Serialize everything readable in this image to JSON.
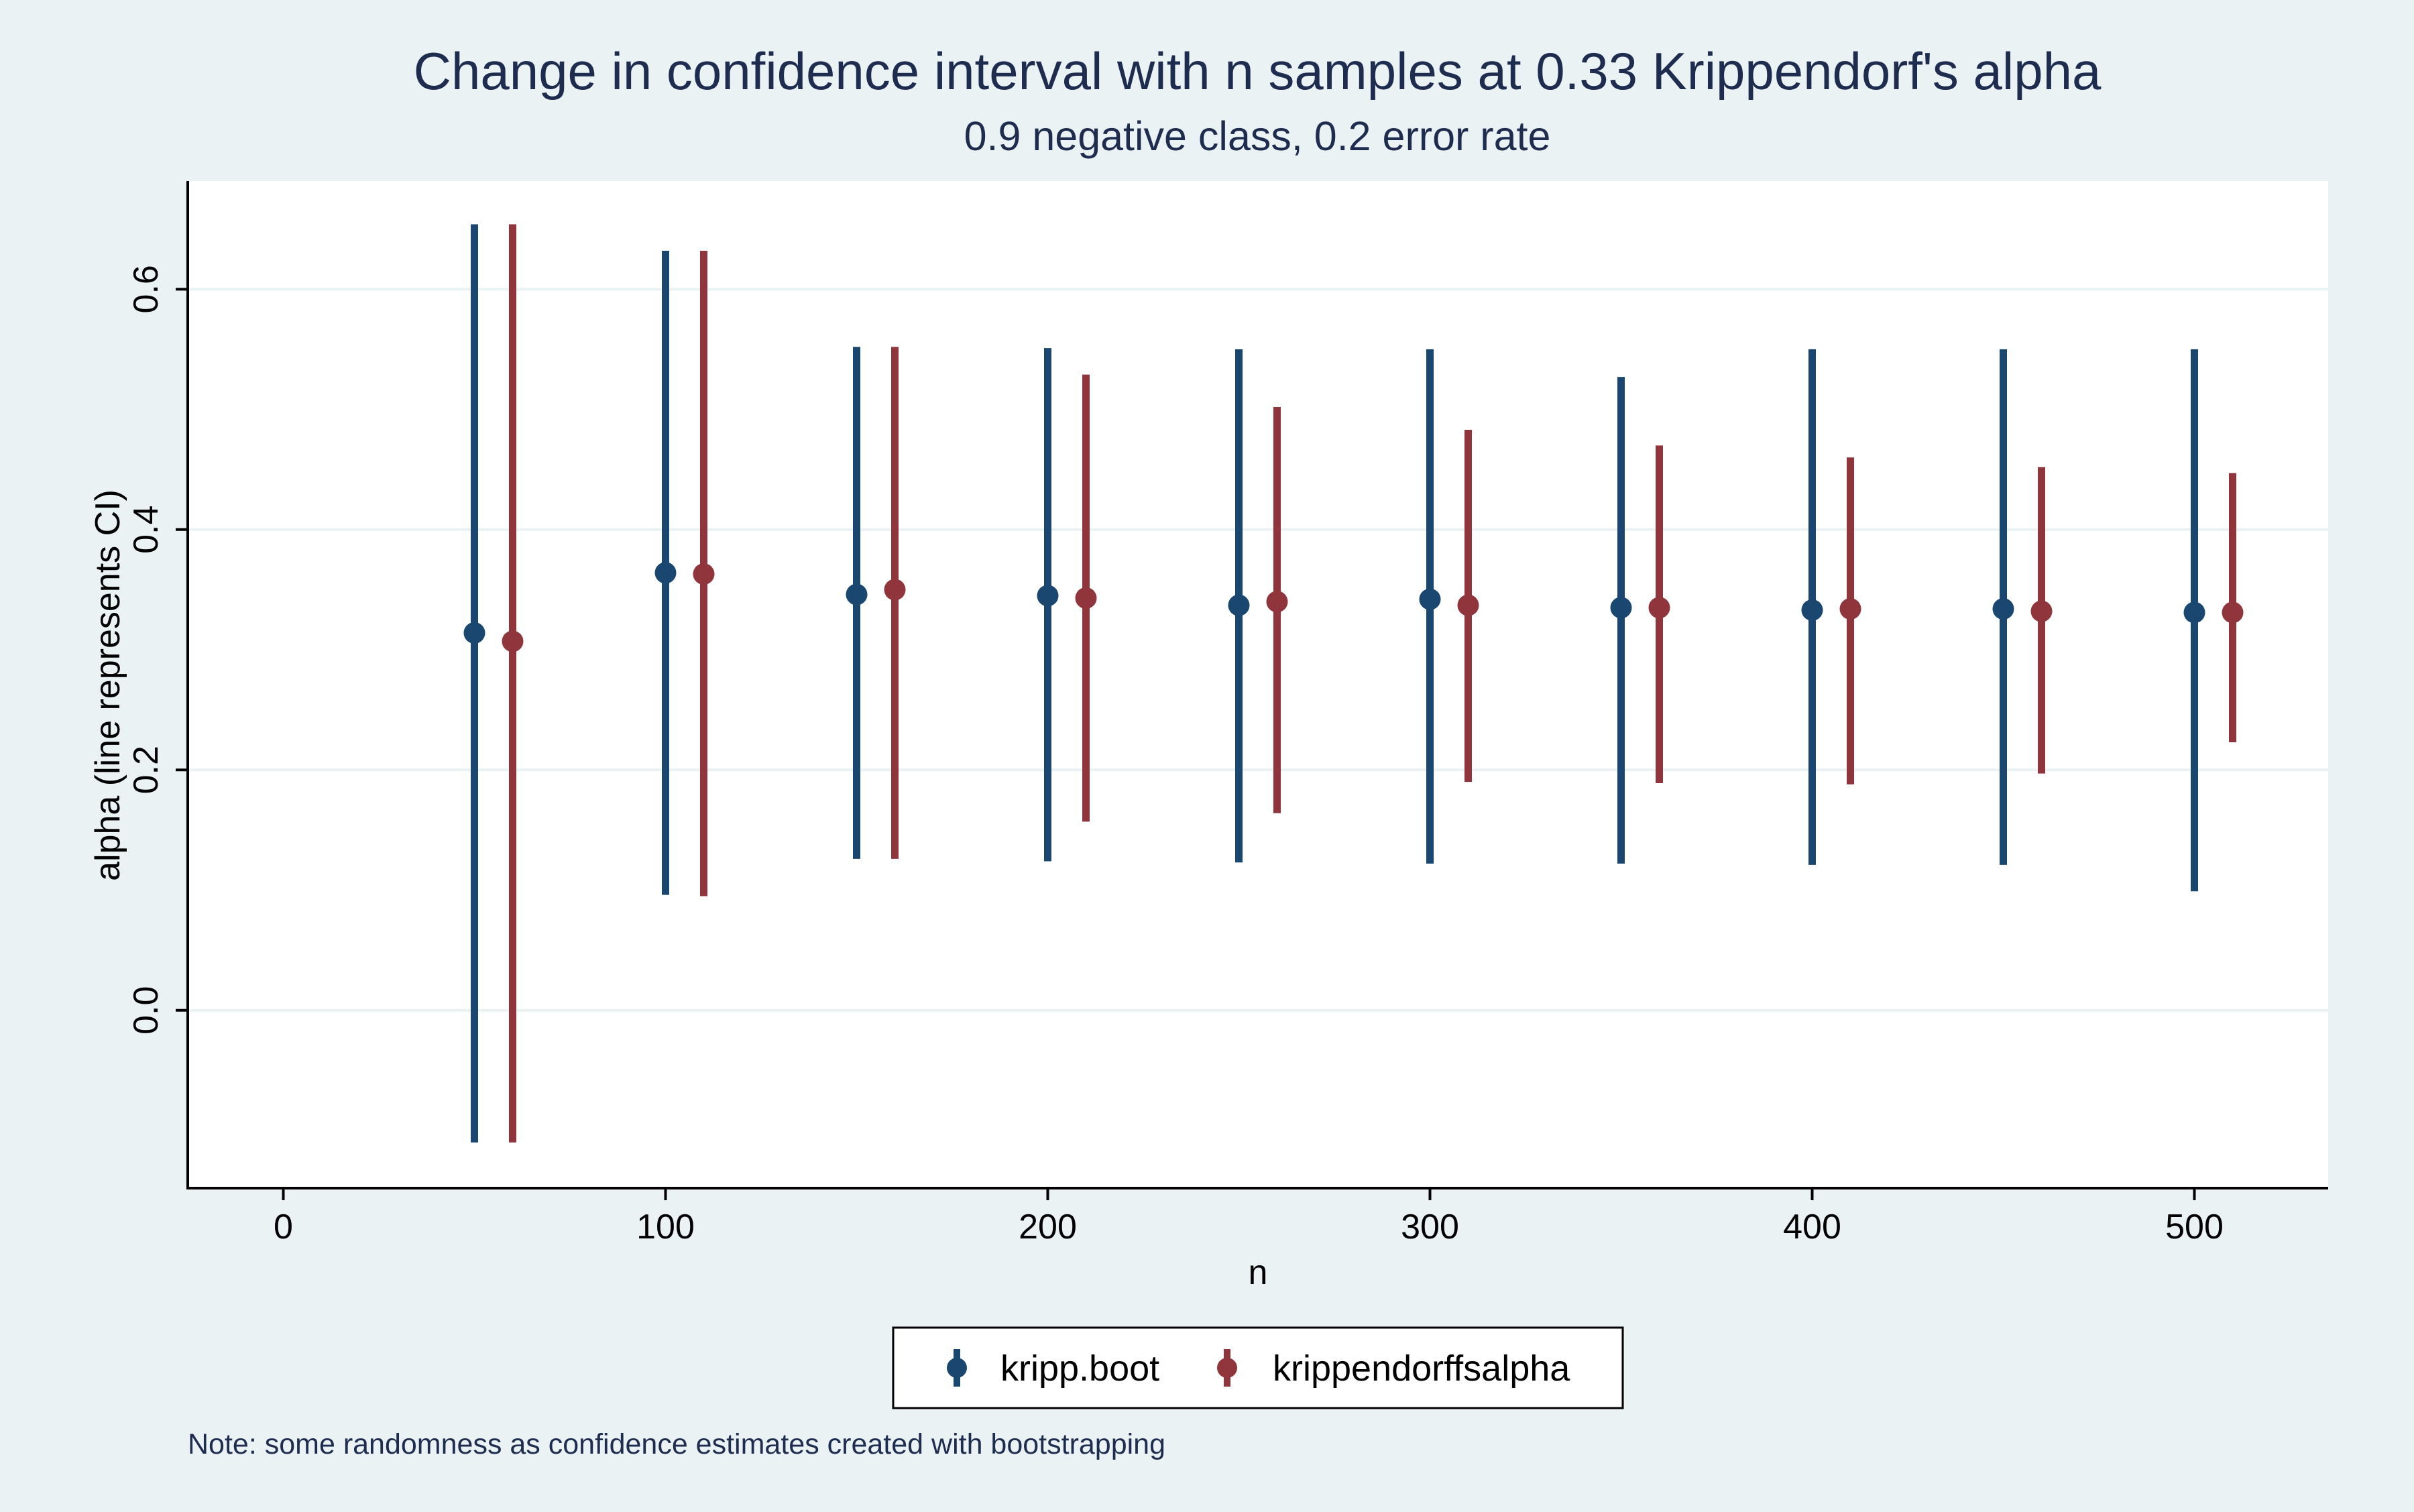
{
  "chart_data": {
    "type": "scatter",
    "title": "Change in confidence interval with n samples at 0.33 Krippendorf's alpha",
    "subtitle": "0.9 negative class, 0.2 error rate",
    "xlabel": "n",
    "ylabel": "alpha (line represents CI)",
    "xlim": [
      -25,
      535
    ],
    "ylim": [
      -0.148,
      0.69
    ],
    "xticks": [
      0,
      100,
      200,
      300,
      400,
      500
    ],
    "xtick_labels": [
      "0",
      "100",
      "200",
      "300",
      "400",
      "500"
    ],
    "yticks": [
      0.0,
      0.2,
      0.4,
      0.6
    ],
    "ytick_labels": [
      "0.0",
      "0.2",
      "0.4",
      "0.6"
    ],
    "grid": "horizontal",
    "legend_position": "bottom",
    "series": [
      {
        "name": "kripp.boot",
        "color": "#1a476f",
        "points": [
          {
            "x": 50,
            "y": 0.314,
            "lo": -0.11,
            "hi": 0.654
          },
          {
            "x": 100,
            "y": 0.364,
            "lo": 0.096,
            "hi": 0.632
          },
          {
            "x": 150,
            "y": 0.346,
            "lo": 0.126,
            "hi": 0.552
          },
          {
            "x": 200,
            "y": 0.345,
            "lo": 0.124,
            "hi": 0.551
          },
          {
            "x": 250,
            "y": 0.337,
            "lo": 0.123,
            "hi": 0.55
          },
          {
            "x": 300,
            "y": 0.342,
            "lo": 0.122,
            "hi": 0.55
          },
          {
            "x": 350,
            "y": 0.335,
            "lo": 0.122,
            "hi": 0.527
          },
          {
            "x": 400,
            "y": 0.333,
            "lo": 0.121,
            "hi": 0.55
          },
          {
            "x": 450,
            "y": 0.334,
            "lo": 0.121,
            "hi": 0.55
          },
          {
            "x": 500,
            "y": 0.331,
            "lo": 0.099,
            "hi": 0.55
          }
        ]
      },
      {
        "name": "krippendorffsalpha",
        "color": "#90353b",
        "points": [
          {
            "x": 60,
            "y": 0.307,
            "lo": -0.11,
            "hi": 0.654
          },
          {
            "x": 110,
            "y": 0.363,
            "lo": 0.095,
            "hi": 0.632
          },
          {
            "x": 160,
            "y": 0.35,
            "lo": 0.126,
            "hi": 0.552
          },
          {
            "x": 210,
            "y": 0.343,
            "lo": 0.157,
            "hi": 0.529
          },
          {
            "x": 260,
            "y": 0.34,
            "lo": 0.164,
            "hi": 0.502
          },
          {
            "x": 310,
            "y": 0.337,
            "lo": 0.19,
            "hi": 0.483
          },
          {
            "x": 360,
            "y": 0.335,
            "lo": 0.189,
            "hi": 0.47
          },
          {
            "x": 410,
            "y": 0.334,
            "lo": 0.188,
            "hi": 0.46
          },
          {
            "x": 460,
            "y": 0.332,
            "lo": 0.197,
            "hi": 0.452
          },
          {
            "x": 510,
            "y": 0.331,
            "lo": 0.223,
            "hi": 0.447
          }
        ]
      }
    ],
    "note": "Note: some randomness as confidence estimates created with bootstrapping"
  },
  "colors": {
    "background": "#eaf2f3",
    "plot_background": "#ffffff",
    "grid": "#eaf2f3",
    "title": "#1e2d4f",
    "axis": "#000000"
  }
}
